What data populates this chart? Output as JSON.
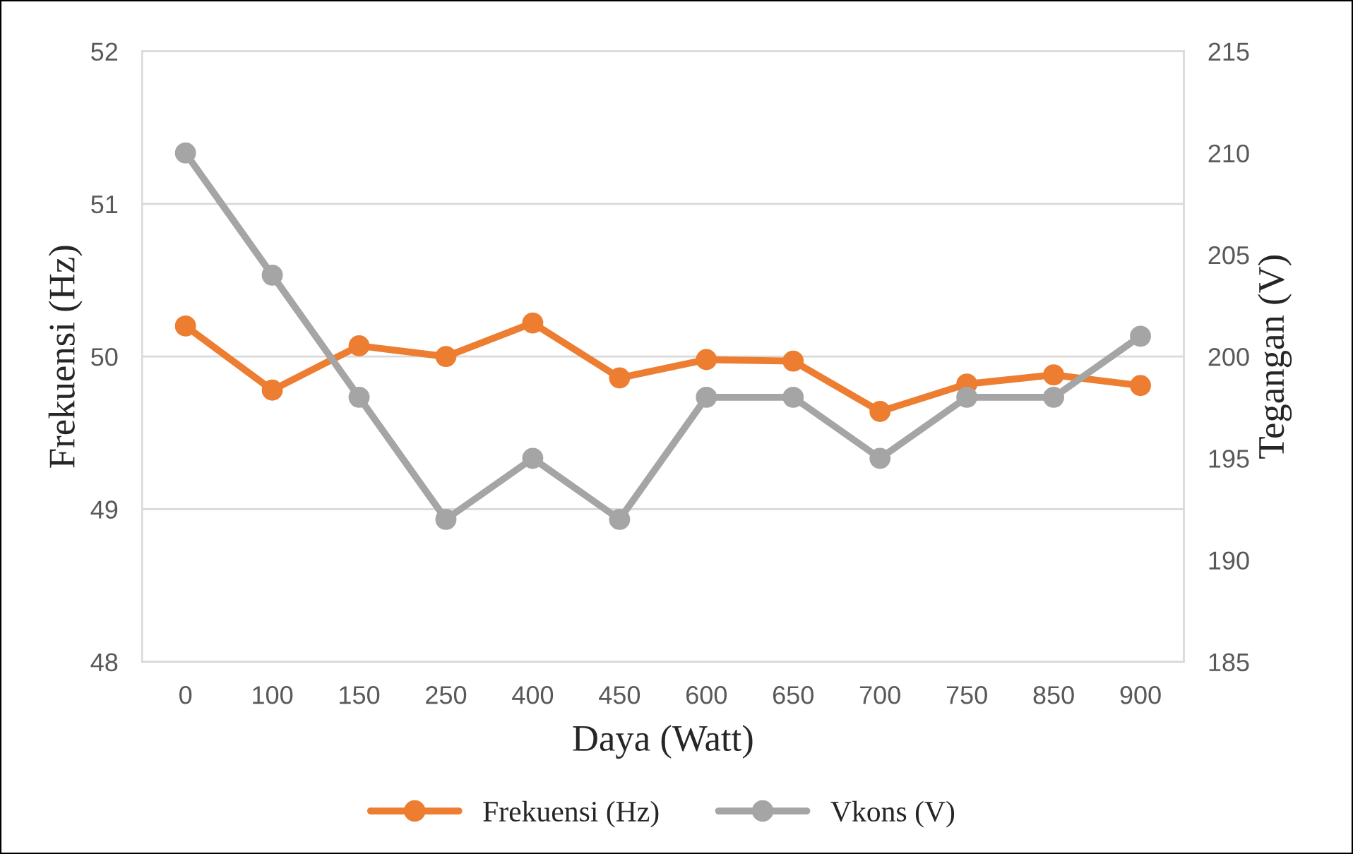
{
  "chart_data": {
    "type": "line",
    "xlabel": "Daya (Watt)",
    "ylabel": "Frekuensi (Hz)",
    "y2label": "Tegangan (V)",
    "categories": [
      "0",
      "100",
      "150",
      "250",
      "400",
      "450",
      "600",
      "650",
      "700",
      "750",
      "850",
      "900"
    ],
    "series": [
      {
        "name": "Frekuensi (Hz)",
        "color": "#ed7d31",
        "values": [
          50.2,
          49.78,
          50.07,
          50.0,
          50.22,
          49.86,
          49.98,
          49.97,
          49.64,
          49.82,
          49.88,
          49.81
        ]
      },
      {
        "name": "Vkons (V)",
        "color": "#a5a5a5",
        "axis": "y2",
        "values": [
          210,
          204,
          198,
          192,
          195,
          192,
          198,
          198,
          195,
          198,
          198,
          201
        ]
      }
    ],
    "ylim": [
      48,
      52
    ],
    "yticks": [
      48,
      49,
      50,
      51,
      52
    ],
    "y2lim": [
      185,
      215
    ],
    "y2ticks": [
      185,
      190,
      195,
      200,
      205,
      210,
      215
    ],
    "grid": "y",
    "legend": "bottom",
    "marker": "circle",
    "line_style": "solid"
  }
}
